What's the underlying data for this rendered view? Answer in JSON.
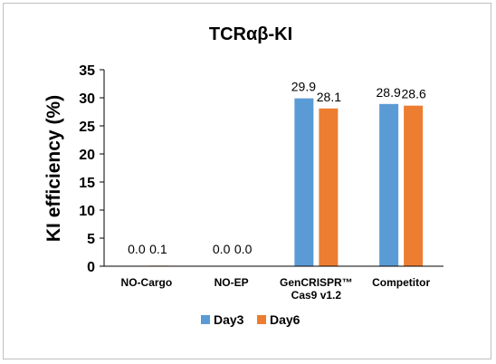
{
  "colors": {
    "day3": "#5b9bd5",
    "day6": "#ed7d31",
    "axis": "#000000"
  },
  "chart_data": {
    "type": "bar",
    "title": "TCRαβ-KI",
    "ylabel": "KI efficiency (%)",
    "xlabel": "",
    "ylim": [
      0,
      35
    ],
    "yticks": [
      0,
      5,
      10,
      15,
      20,
      25,
      30,
      35
    ],
    "grid": false,
    "legend_position": "bottom",
    "categories": [
      [
        "NO-Cargo"
      ],
      [
        "NO-EP"
      ],
      [
        "GenCRISPR™",
        "Cas9 v1.2"
      ],
      [
        "Competitor"
      ]
    ],
    "series": [
      {
        "name": "Day3",
        "color": "#5b9bd5",
        "values": [
          0.0,
          0.0,
          29.9,
          28.9
        ],
        "labels": [
          "0.0",
          "0.0",
          "29.9",
          "28.9"
        ]
      },
      {
        "name": "Day6",
        "color": "#ed7d31",
        "values": [
          0.1,
          0.0,
          28.1,
          28.6
        ],
        "labels": [
          "0.1",
          "0.0",
          "28.1",
          "28.6"
        ]
      }
    ]
  }
}
